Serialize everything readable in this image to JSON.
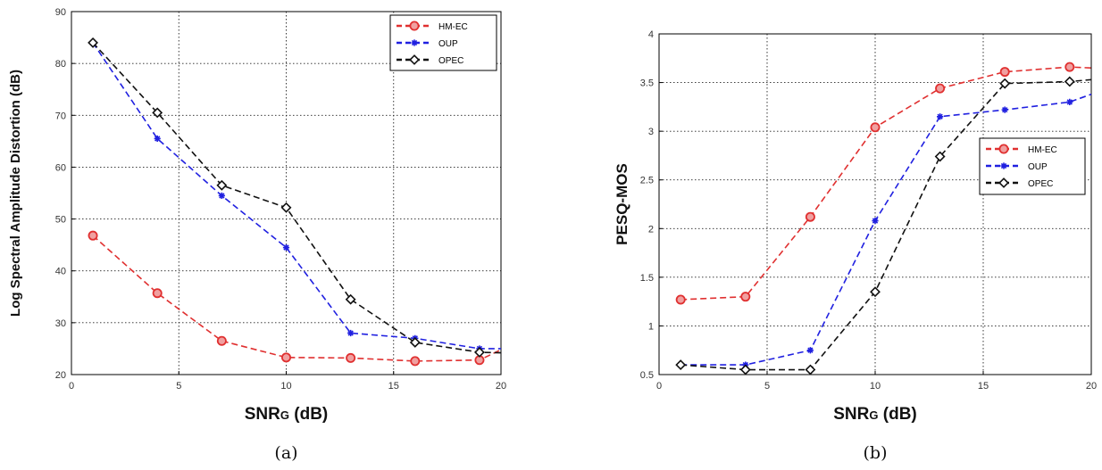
{
  "chart_data": [
    {
      "id": "a",
      "type": "line",
      "caption": "(a)",
      "xlabel": "SNR",
      "xlabel_sub": "G",
      "xlabel_unit": "(dB)",
      "ylabel": "Log Spectral Amplitude Distortion (dB)",
      "xlim": [
        0,
        20
      ],
      "ylim": [
        20,
        90
      ],
      "xticks": [
        0,
        5,
        10,
        15,
        20
      ],
      "yticks": [
        20,
        30,
        40,
        50,
        60,
        70,
        80,
        90
      ],
      "grid": true,
      "legend_position": "top-right",
      "series": [
        {
          "name": "HM-EC",
          "color": "#e03030",
          "marker": "circle",
          "x": [
            1,
            4,
            7,
            10,
            13,
            16,
            19,
            20
          ],
          "y": [
            46.8,
            35.7,
            26.5,
            23.3,
            23.2,
            22.6,
            22.8,
            24.8
          ]
        },
        {
          "name": "OUP",
          "color": "#2020e0",
          "marker": "star",
          "x": [
            1,
            4,
            7,
            10,
            13,
            16,
            19,
            20
          ],
          "y": [
            84,
            65.5,
            54.5,
            44.5,
            28,
            27,
            25,
            25
          ]
        },
        {
          "name": "OPEC",
          "color": "#111111",
          "marker": "diamond",
          "x": [
            1,
            4,
            7,
            10,
            13,
            16,
            19,
            20
          ],
          "y": [
            84,
            70.5,
            56.5,
            52.2,
            34.5,
            26.2,
            24.3,
            24.2
          ]
        }
      ]
    },
    {
      "id": "b",
      "type": "line",
      "caption": "(b)",
      "xlabel": "SNR",
      "xlabel_sub": "G",
      "xlabel_unit": "(dB)",
      "ylabel": "PESQ-MOS",
      "xlim": [
        0,
        20
      ],
      "ylim": [
        0.5,
        4
      ],
      "xticks": [
        0,
        5,
        10,
        15,
        20
      ],
      "yticks": [
        0.5,
        1,
        1.5,
        2,
        2.5,
        3,
        3.5,
        4
      ],
      "grid": true,
      "legend_position": "center-right",
      "series": [
        {
          "name": "HM-EC",
          "color": "#e03030",
          "marker": "circle",
          "x": [
            1,
            4,
            7,
            10,
            13,
            16,
            19,
            20
          ],
          "y": [
            1.27,
            1.3,
            2.12,
            3.04,
            3.44,
            3.61,
            3.66,
            3.65
          ]
        },
        {
          "name": "OUP",
          "color": "#2020e0",
          "marker": "star",
          "x": [
            1,
            4,
            7,
            10,
            13,
            16,
            19,
            20
          ],
          "y": [
            0.6,
            0.6,
            0.75,
            2.08,
            3.15,
            3.22,
            3.3,
            3.38
          ]
        },
        {
          "name": "OPEC",
          "color": "#111111",
          "marker": "diamond",
          "x": [
            1,
            4,
            7,
            10,
            13,
            16,
            19,
            20
          ],
          "y": [
            0.6,
            0.55,
            0.55,
            1.35,
            2.74,
            3.49,
            3.51,
            3.53
          ]
        }
      ]
    }
  ]
}
